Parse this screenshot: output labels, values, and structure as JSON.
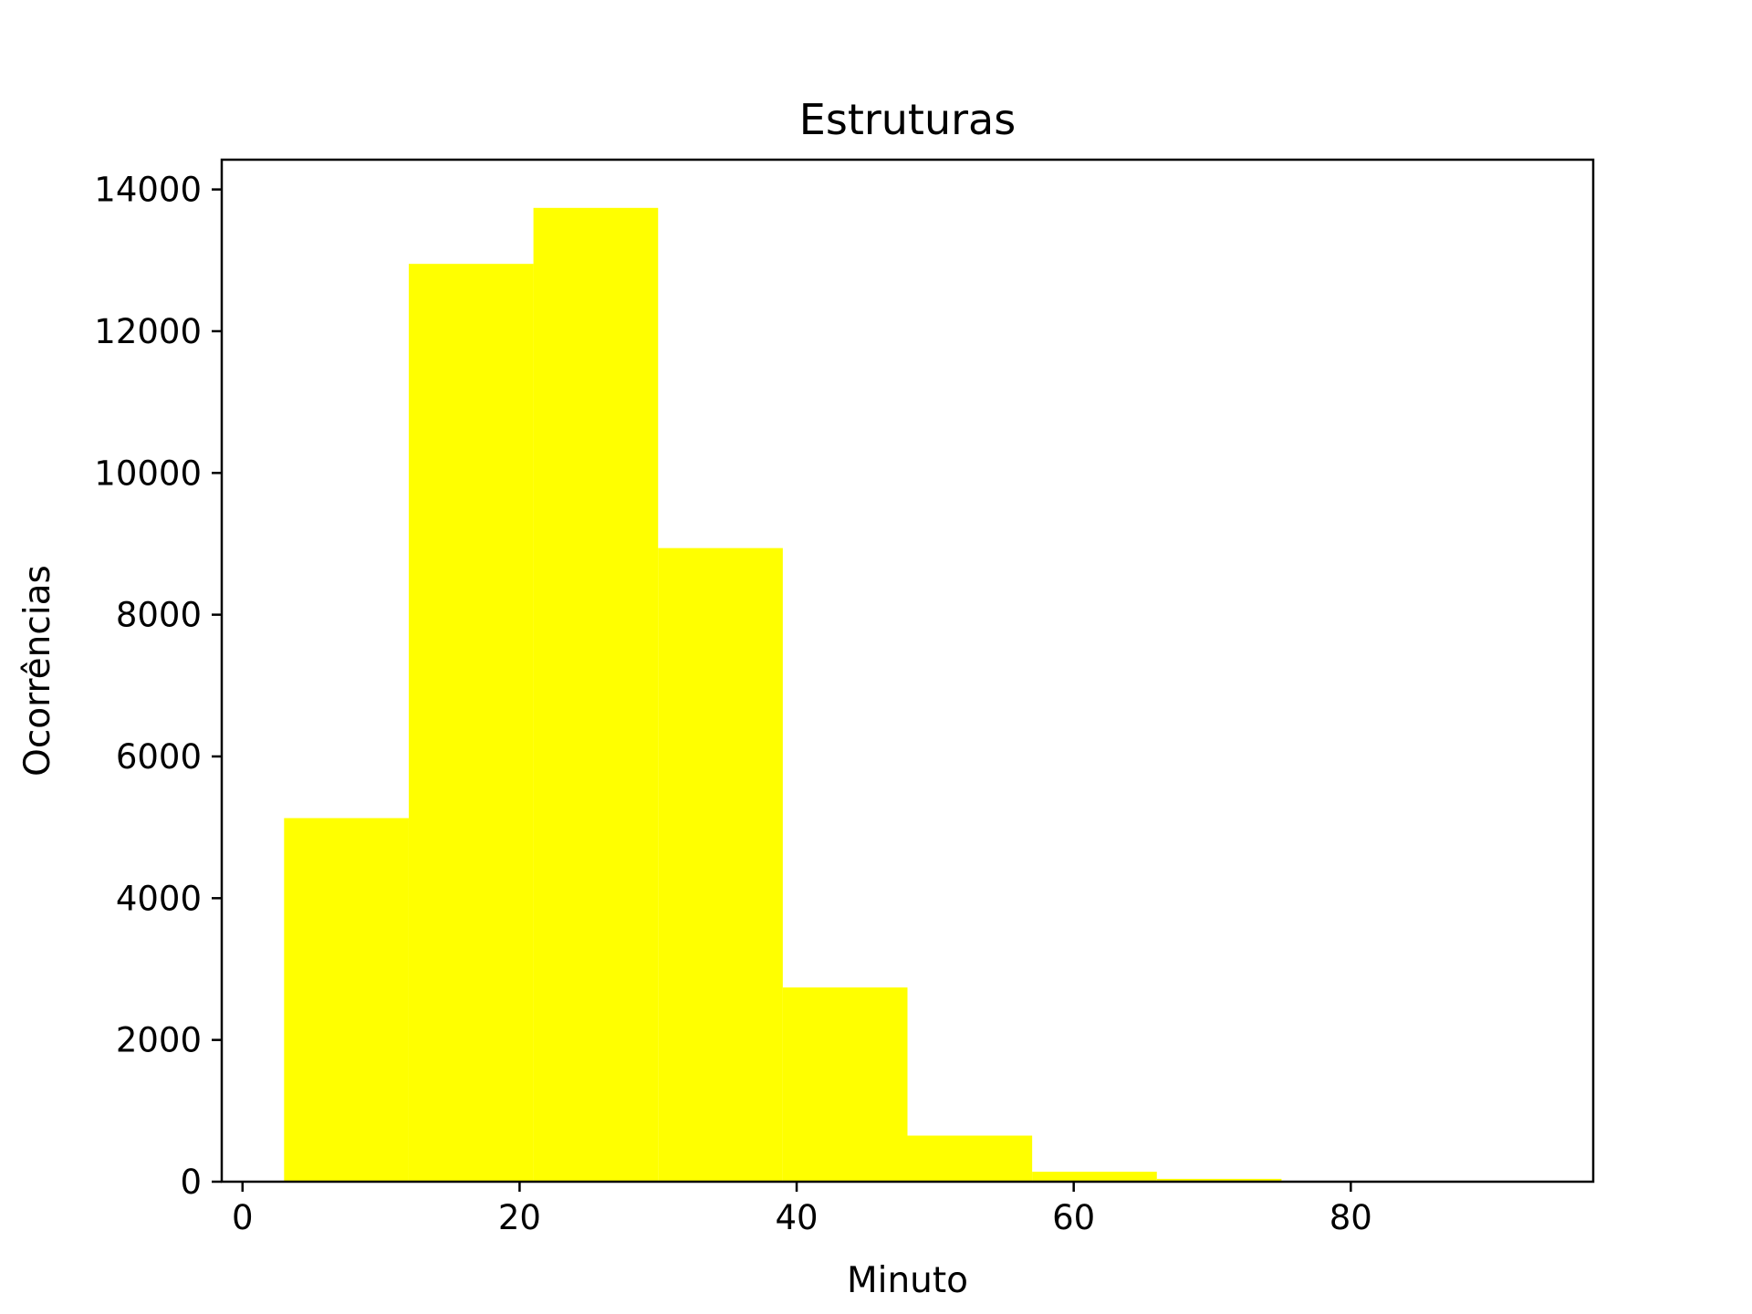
{
  "chart_data": {
    "type": "bar",
    "subtype": "histogram",
    "title": "Estruturas",
    "xlabel": "Minuto",
    "ylabel": "Ocorrências",
    "bins": [
      {
        "x0": 3.0,
        "x1": 12.0,
        "count": 5130
      },
      {
        "x0": 12.0,
        "x1": 21.0,
        "count": 12950
      },
      {
        "x0": 21.0,
        "x1": 30.0,
        "count": 13740
      },
      {
        "x0": 30.0,
        "x1": 39.0,
        "count": 8940
      },
      {
        "x0": 39.0,
        "x1": 48.0,
        "count": 2740
      },
      {
        "x0": 48.0,
        "x1": 57.0,
        "count": 650
      },
      {
        "x0": 57.0,
        "x1": 66.0,
        "count": 140
      },
      {
        "x0": 66.0,
        "x1": 75.0,
        "count": 40
      },
      {
        "x0": 75.0,
        "x1": 84.0,
        "count": 8
      },
      {
        "x0": 84.0,
        "x1": 93.0,
        "count": 2
      }
    ],
    "xlim": [
      -1.5,
      97.5
    ],
    "ylim": [
      0,
      14420
    ],
    "xticks": [
      0,
      20,
      40,
      60,
      80
    ],
    "yticks": [
      0,
      2000,
      4000,
      6000,
      8000,
      10000,
      12000,
      14000
    ],
    "bar_color": "#ffff00",
    "grid": false,
    "legend": "none"
  }
}
